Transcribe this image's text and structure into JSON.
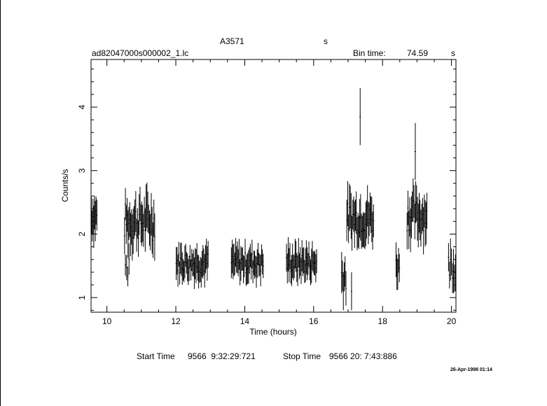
{
  "header": {
    "object": "A3571",
    "unit_s": "s",
    "file": "ad82047000s000002_1.lc",
    "bin_time_label": "Bin time:",
    "bin_time_value": "74.59",
    "bin_time_unit": "s"
  },
  "footer": {
    "start_label": "Start Time",
    "start_value": "9566  9:32:29:721",
    "stop_label": "Stop Time",
    "stop_value": "9566 20: 7:43:886",
    "date": "26-Apr-1998 01:14"
  },
  "chart_data": {
    "type": "scatter",
    "title": "A3571",
    "xlabel": "Time (hours)",
    "ylabel": "Counts/s",
    "xlim": [
      9.54,
      20.13
    ],
    "ylim": [
      0.77,
      4.75
    ],
    "xticks": [
      10,
      12,
      14,
      16,
      18,
      20
    ],
    "yticks": [
      1,
      2,
      3,
      4
    ],
    "error_bars": true,
    "grid": false,
    "series": [
      {
        "segments": [
          {
            "x0": 9.54,
            "x1": 9.72,
            "x_end_value": 2.25,
            "mean": 2.3,
            "amp": 0.22,
            "err": 0.28,
            "n": 8
          },
          {
            "x0": 10.52,
            "x1": 10.66,
            "x_end_value": 1.35,
            "mean": 1.45,
            "amp": 0.18,
            "err": 0.2,
            "n": 4
          },
          {
            "x0": 10.5,
            "x1": 11.4,
            "x_end_value": 2.1,
            "mean": 2.2,
            "amp": 0.3,
            "err": 0.3,
            "n": 36
          },
          {
            "x0": 12.0,
            "x1": 12.95,
            "x_end_value": 1.5,
            "mean": 1.55,
            "amp": 0.17,
            "err": 0.22,
            "n": 38
          },
          {
            "x0": 13.6,
            "x1": 14.55,
            "x_end_value": 1.5,
            "mean": 1.55,
            "amp": 0.17,
            "err": 0.22,
            "n": 38
          },
          {
            "x0": 15.2,
            "x1": 16.1,
            "x_end_value": 1.55,
            "mean": 1.55,
            "amp": 0.17,
            "err": 0.22,
            "n": 36
          },
          {
            "x0": 16.8,
            "x1": 16.95,
            "x_end_value": 1.3,
            "mean": 1.35,
            "amp": 0.25,
            "err": 0.3,
            "n": 6
          },
          {
            "x0": 16.95,
            "x1": 17.75,
            "x_end_value": 2.2,
            "mean": 2.25,
            "amp": 0.25,
            "err": 0.3,
            "n": 32
          },
          {
            "x0": 18.38,
            "x1": 18.5,
            "x_end_value": 1.35,
            "mean": 1.5,
            "amp": 0.17,
            "err": 0.25,
            "n": 5
          },
          {
            "x0": 18.7,
            "x1": 19.3,
            "x_end_value": 2.15,
            "mean": 2.3,
            "amp": 0.25,
            "err": 0.3,
            "n": 24
          },
          {
            "x0": 19.9,
            "x1": 20.13,
            "x_end_value": 1.55,
            "mean": 1.5,
            "amp": 0.2,
            "err": 0.28,
            "n": 8
          }
        ],
        "spikes": [
          {
            "x": 17.35,
            "y": 3.85,
            "err": 0.45
          },
          {
            "x": 18.95,
            "y": 3.3,
            "err": 0.45
          },
          {
            "x": 17.1,
            "y": 1.1,
            "err": 0.3
          }
        ]
      }
    ]
  }
}
